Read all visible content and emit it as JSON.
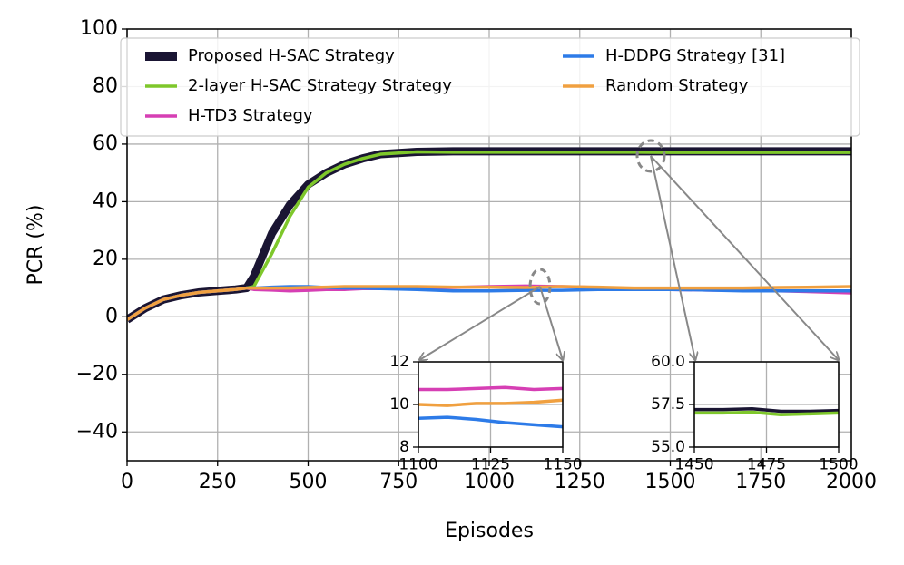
{
  "chart_data": [
    {
      "type": "line",
      "x_label": "Episodes",
      "y_label": "PCR (%)",
      "x": [
        0,
        50,
        100,
        150,
        200,
        250,
        300,
        330,
        350,
        400,
        450,
        500,
        550,
        600,
        650,
        700,
        800,
        900,
        1000,
        1100,
        1200,
        1300,
        1400,
        1500,
        1600,
        1700,
        1800,
        1900,
        2000
      ],
      "series": [
        {
          "name": "Proposed H-SAC Strategy",
          "color": "#1a1533",
          "values": [
            -1,
            3,
            6,
            7.5,
            8.5,
            9,
            9.5,
            10,
            14,
            29,
            39,
            46,
            50,
            53,
            55,
            56.5,
            57.3,
            57.5,
            57.5,
            57.5,
            57.5,
            57.5,
            57.5,
            57.5,
            57.5,
            57.5,
            57.5,
            57.5,
            57.5
          ]
        },
        {
          "name": "2-layer H-SAC Strategy Strategy",
          "color": "#7ec72b",
          "values": [
            -1,
            3,
            6,
            7.5,
            8.5,
            9,
            9.5,
            10,
            10.5,
            22,
            35,
            45,
            50,
            53,
            55,
            56.5,
            57.3,
            57.2,
            57.2,
            57.2,
            57.2,
            57.2,
            57.2,
            57.1,
            57.1,
            57.1,
            57.1,
            57.1,
            57.1
          ]
        },
        {
          "name": "H-TD3 Strategy",
          "color": "#d63fb4",
          "values": [
            -1,
            3,
            6,
            7.5,
            8.5,
            9,
            9.5,
            10,
            9.5,
            9.3,
            9,
            9.2,
            9.5,
            9.5,
            9.8,
            9.8,
            10,
            10.2,
            10.5,
            10.7,
            10.5,
            10.2,
            9.8,
            9.5,
            9.3,
            9.2,
            9,
            8.7,
            8.3
          ]
        },
        {
          "name": "H-DDPG Strategy [31]",
          "color": "#2d7be8",
          "values": [
            -1,
            3,
            6,
            7.5,
            8.5,
            9,
            9.5,
            10,
            10,
            10.3,
            10.5,
            10.5,
            10.2,
            10,
            10,
            9.8,
            9.5,
            9,
            9,
            9.2,
            9.2,
            9.5,
            9.5,
            9.5,
            9.3,
            9,
            9,
            9,
            9
          ]
        },
        {
          "name": "Random Strategy",
          "color": "#f0a040",
          "values": [
            -1,
            3,
            6,
            7.5,
            8.5,
            9,
            9.5,
            10,
            10,
            10,
            10,
            10.2,
            10.3,
            10.5,
            10.5,
            10.5,
            10.5,
            10.3,
            10.3,
            10.2,
            10.5,
            10.3,
            10,
            10,
            10,
            10,
            10.2,
            10.3,
            10.5
          ]
        }
      ],
      "xlim": [
        0,
        2000
      ],
      "xticks": [
        0,
        250,
        500,
        750,
        1000,
        1250,
        1500,
        1750,
        2000
      ],
      "ylim": [
        -50,
        100
      ],
      "yticks": [
        {
          "value": -40,
          "label": "−40"
        },
        {
          "value": -20,
          "label": "−20"
        },
        0,
        20,
        40,
        60,
        80,
        100
      ],
      "grid": true,
      "legend": true
    },
    {
      "type": "line",
      "x": [
        1100,
        1110,
        1120,
        1130,
        1140,
        1150
      ],
      "series": [
        {
          "color": "#d63fb4",
          "values": [
            10.7,
            10.7,
            10.75,
            10.8,
            10.7,
            10.75
          ]
        },
        {
          "color": "#f0a040",
          "values": [
            10,
            9.95,
            10.05,
            10.05,
            10.1,
            10.2
          ]
        },
        {
          "color": "#2d7be8",
          "values": [
            9.35,
            9.4,
            9.3,
            9.15,
            9.05,
            8.95
          ]
        }
      ],
      "xlim": [
        1100,
        1150
      ],
      "xticks": [
        1100,
        1125,
        1150
      ],
      "ylim": [
        8,
        12
      ],
      "yticks": [
        8,
        10,
        12
      ],
      "grid": true
    },
    {
      "type": "line",
      "x": [
        1450,
        1460,
        1470,
        1480,
        1490,
        1500
      ],
      "series": [
        {
          "color": "#1a1533",
          "values": [
            57.2,
            57.2,
            57.25,
            57.1,
            57.1,
            57.15
          ]
        },
        {
          "color": "#7ec72b",
          "values": [
            57,
            57,
            57.05,
            56.9,
            56.95,
            57
          ]
        }
      ],
      "xlim": [
        1450,
        1500
      ],
      "xticks": [
        1450,
        1475,
        1500
      ],
      "ylim": [
        55,
        60
      ],
      "yticks": [
        {
          "value": 55,
          "label": "55.0"
        },
        57.5,
        {
          "value": 60,
          "label": "60.0"
        }
      ],
      "grid": true
    }
  ]
}
